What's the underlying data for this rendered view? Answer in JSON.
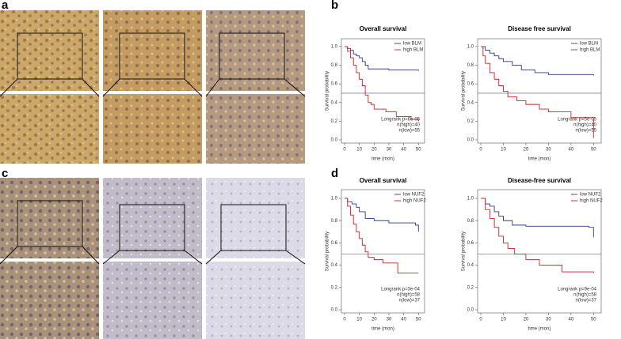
{
  "panel_labels": [
    "a",
    "b",
    "c",
    "d"
  ],
  "chart_data": [
    {
      "type": "step",
      "title": "Overall survival",
      "xlabel": "time (mon)",
      "ylabel": "Survival probability",
      "xlim": [
        0,
        52
      ],
      "xticks": [
        0,
        10,
        20,
        30,
        40,
        50
      ],
      "ylim": [
        0,
        1.05
      ],
      "yticks": [
        {
          "value": 0,
          "label": "0.0"
        },
        0.2,
        0.4,
        0.6,
        0.8,
        {
          "value": 1,
          "label": "1.0"
        }
      ],
      "reference_line": 0.5,
      "annotations": [
        "Longrank p=6e-06",
        "n(high)=40",
        "n(low)=55"
      ],
      "series": [
        {
          "name": "low BLM",
          "color": "#2b3990",
          "x": [
            0,
            2,
            4,
            6,
            8,
            10,
            12,
            14,
            16,
            30,
            50
          ],
          "values": [
            1,
            0.98,
            0.96,
            0.92,
            0.9,
            0.88,
            0.84,
            0.8,
            0.76,
            0.75,
            0.74
          ]
        },
        {
          "name": "high BLM",
          "color": "#d22020",
          "x": [
            0,
            2,
            4,
            6,
            8,
            10,
            12,
            14,
            16,
            18,
            20,
            28,
            35,
            45,
            50
          ],
          "values": [
            1,
            0.95,
            0.88,
            0.8,
            0.72,
            0.65,
            0.58,
            0.48,
            0.4,
            0.38,
            0.33,
            0.3,
            0.25,
            0.22,
            0.2
          ]
        }
      ]
    },
    {
      "type": "step",
      "title": "Disease free survival",
      "xlabel": "time (mon)",
      "ylabel": "Survival probability",
      "xlim": [
        0,
        52
      ],
      "xticks": [
        0,
        10,
        20,
        30,
        40,
        50
      ],
      "ylim": [
        0,
        1.05
      ],
      "yticks": [
        {
          "value": 0,
          "label": "0.0"
        },
        0.2,
        0.4,
        0.6,
        0.8,
        {
          "value": 1,
          "label": "1.0"
        }
      ],
      "reference_line": 0.5,
      "annotations": [
        "Longrank p=5e-05",
        "n(high)=40",
        "n(low)=55"
      ],
      "series": [
        {
          "name": "low BLM",
          "color": "#2b3990",
          "x": [
            0,
            2,
            4,
            6,
            8,
            10,
            14,
            18,
            24,
            30,
            50
          ],
          "values": [
            1,
            0.96,
            0.93,
            0.9,
            0.87,
            0.84,
            0.8,
            0.75,
            0.72,
            0.7,
            0.69
          ]
        },
        {
          "name": "high BLM",
          "color": "#d22020",
          "x": [
            0,
            1,
            2,
            4,
            6,
            8,
            10,
            12,
            16,
            20,
            26,
            30,
            40,
            50
          ],
          "values": [
            1,
            0.9,
            0.82,
            0.72,
            0.65,
            0.58,
            0.52,
            0.46,
            0.42,
            0.38,
            0.33,
            0.3,
            0.24,
            0.02
          ]
        }
      ]
    },
    {
      "type": "step",
      "title": "Overall survival",
      "xlabel": "time (mon)",
      "ylabel": "Survival probability",
      "xlim": [
        0,
        52
      ],
      "xticks": [
        0,
        10,
        20,
        30,
        40,
        50
      ],
      "ylim": [
        0,
        1.05
      ],
      "yticks": [
        {
          "value": 0,
          "label": "0.0"
        },
        0.2,
        0.4,
        0.6,
        0.8,
        {
          "value": 1,
          "label": "1.0"
        }
      ],
      "reference_line": 0.5,
      "annotations": [
        "Longrank p=3e-04",
        "n(high)=58",
        "n(low)=37"
      ],
      "series": [
        {
          "name": "low NUF2",
          "color": "#2b3990",
          "x": [
            0,
            2,
            5,
            8,
            10,
            14,
            20,
            30,
            40,
            48,
            50
          ],
          "values": [
            1,
            0.97,
            0.95,
            0.92,
            0.88,
            0.82,
            0.8,
            0.78,
            0.78,
            0.76,
            0.7
          ]
        },
        {
          "name": "high NUF2",
          "color": "#d22020",
          "x": [
            0,
            2,
            4,
            6,
            8,
            10,
            12,
            14,
            16,
            20,
            26,
            36,
            50
          ],
          "values": [
            1,
            0.93,
            0.85,
            0.77,
            0.7,
            0.64,
            0.58,
            0.52,
            0.47,
            0.45,
            0.42,
            0.33,
            0.33
          ]
        }
      ]
    },
    {
      "type": "step",
      "title": "Disease-free survival",
      "xlabel": "time (mon)",
      "ylabel": "Survival probability",
      "xlim": [
        0,
        52
      ],
      "xticks": [
        0,
        10,
        20,
        30,
        40,
        50
      ],
      "ylim": [
        0,
        1.05
      ],
      "yticks": [
        {
          "value": 0,
          "label": "0.0"
        },
        0.2,
        0.4,
        0.6,
        0.8,
        {
          "value": 1,
          "label": "1.0"
        }
      ],
      "reference_line": 0.5,
      "annotations": [
        "Longrank p=9e-04",
        "n(high)=58",
        "n(low)=37"
      ],
      "series": [
        {
          "name": "low NUF2",
          "color": "#2b3990",
          "x": [
            0,
            2,
            4,
            6,
            8,
            10,
            14,
            20,
            40,
            48,
            50
          ],
          "values": [
            1,
            0.95,
            0.93,
            0.88,
            0.84,
            0.8,
            0.76,
            0.75,
            0.75,
            0.74,
            0.65
          ]
        },
        {
          "name": "high NUF2",
          "color": "#d22020",
          "x": [
            0,
            2,
            4,
            6,
            8,
            10,
            12,
            15,
            20,
            26,
            36,
            50
          ],
          "values": [
            1,
            0.9,
            0.82,
            0.74,
            0.66,
            0.6,
            0.55,
            0.5,
            0.45,
            0.4,
            0.34,
            0.33
          ]
        }
      ]
    }
  ]
}
